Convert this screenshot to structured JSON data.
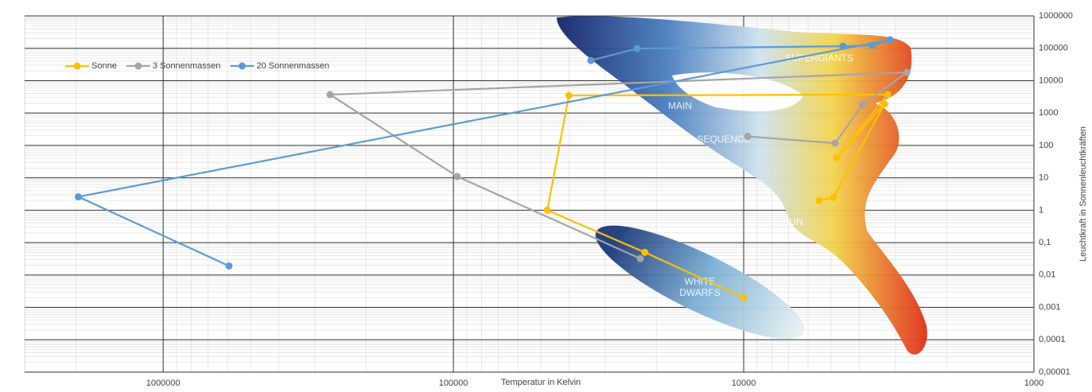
{
  "chart_data": {
    "type": "line",
    "x_label": "Temperatur in Kelvin",
    "y_label": "Leuchtkraft in Sonnenleuchtkräften",
    "xlog": true,
    "ylog": true,
    "x_reversed": true,
    "grid": true,
    "legend": "upper left",
    "xlim": [
      3000000,
      1000
    ],
    "xticks": [
      1000000,
      100000,
      10000,
      1000
    ],
    "ylim": [
      1e-05,
      1000000
    ],
    "yticks": [
      {
        "value": 1e-05,
        "label": "0,00001"
      },
      {
        "value": 0.0001,
        "label": "0,0001"
      },
      {
        "value": 0.001,
        "label": "0,001"
      },
      {
        "value": 0.01,
        "label": "0,01"
      },
      {
        "value": 0.1,
        "label": "0,1"
      },
      1,
      10,
      100,
      1000,
      10000,
      100000,
      1000000
    ],
    "annotations": [
      "SUPERGIANTS",
      "MAIN",
      "SEQUENCE",
      "SUN",
      "WHITE",
      "DWARFS"
    ],
    "series": [
      {
        "name": "Sonne",
        "color": "#ffc000",
        "x": [
          5500,
          4900,
          3270,
          4780,
          3190,
          40000,
          47500,
          21900,
          10000
        ],
        "values": [
          2,
          2.5,
          1900,
          42,
          3700,
          3500,
          1,
          0.05,
          0.002
        ]
      },
      {
        "name": "3 Sonnenmassen",
        "color": "#a5a5a5",
        "x": [
          9690,
          4840,
          3900,
          2740,
          266000,
          97000,
          22700
        ],
        "values": [
          190,
          117,
          1800,
          18000,
          3700,
          11,
          0.032
        ]
      },
      {
        "name": "20 Sonnenmassen",
        "color": "#5b9bd5",
        "x": [
          33600,
          23300,
          4550,
          3600,
          3130,
          1960000,
          593000
        ],
        "values": [
          42000,
          98000,
          116000,
          123000,
          183000,
          2.6,
          0.019
        ]
      }
    ]
  }
}
